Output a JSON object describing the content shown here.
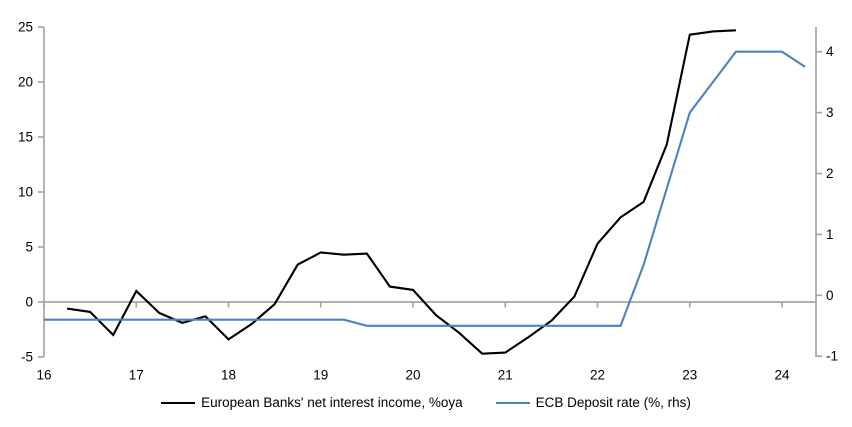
{
  "chart_data": {
    "type": "line",
    "title": "",
    "grid": "zero-baseline-only",
    "legend_position": "bottom-center",
    "x_axis": {
      "tick_labels": [
        "16",
        "17",
        "18",
        "19",
        "20",
        "21",
        "22",
        "23",
        "24"
      ],
      "tick_values": [
        16,
        17,
        18,
        19,
        20,
        21,
        22,
        23,
        24
      ],
      "min": 16,
      "max": 24.37
    },
    "left_axis": {
      "tick_values": [
        25,
        20,
        15,
        10,
        5,
        0,
        -5
      ],
      "min": -5,
      "max": 25
    },
    "right_axis": {
      "tick_values": [
        4,
        3,
        2,
        1,
        0,
        -1
      ],
      "min": -1,
      "max": 4.4
    },
    "series": [
      {
        "name": "European Banks' net interest income, %oya",
        "axis": "left",
        "color": "#000000",
        "x": [
          16.25,
          16.5,
          16.75,
          17.0,
          17.25,
          17.5,
          17.75,
          18.0,
          18.25,
          18.5,
          18.75,
          19.0,
          19.25,
          19.5,
          19.75,
          20.0,
          20.25,
          20.5,
          20.75,
          21.0,
          21.25,
          21.5,
          21.75,
          22.0,
          22.25,
          22.5,
          22.75,
          23.0,
          23.25,
          23.5
        ],
        "values": [
          -0.6,
          -0.9,
          -3.0,
          1.0,
          -1.0,
          -1.9,
          -1.3,
          -3.4,
          -2.0,
          -0.2,
          3.4,
          4.5,
          4.3,
          4.4,
          1.4,
          1.1,
          -1.2,
          -2.8,
          -4.7,
          -4.6,
          -3.2,
          -1.7,
          0.5,
          5.3,
          7.7,
          9.1,
          14.3,
          24.3,
          24.6,
          24.7
        ]
      },
      {
        "name": "ECB Deposit rate (%, rhs)",
        "axis": "right",
        "color": "#4F81BD",
        "x": [
          16.0,
          16.25,
          16.5,
          16.75,
          17.0,
          17.25,
          17.5,
          17.75,
          18.0,
          18.25,
          18.5,
          18.75,
          19.0,
          19.25,
          19.5,
          19.75,
          20.0,
          20.25,
          20.5,
          20.75,
          21.0,
          21.25,
          21.5,
          21.75,
          22.0,
          22.25,
          22.5,
          22.75,
          23.0,
          23.25,
          23.5,
          23.75,
          24.0,
          24.25
        ],
        "values": [
          -0.4,
          -0.4,
          -0.4,
          -0.4,
          -0.4,
          -0.4,
          -0.4,
          -0.4,
          -0.4,
          -0.4,
          -0.4,
          -0.4,
          -0.4,
          -0.4,
          -0.5,
          -0.5,
          -0.5,
          -0.5,
          -0.5,
          -0.5,
          -0.5,
          -0.5,
          -0.5,
          -0.5,
          -0.5,
          -0.5,
          0.5,
          1.75,
          3.0,
          3.5,
          4.0,
          4.0,
          4.0,
          3.75
        ]
      }
    ]
  },
  "colors": {
    "axis": "#a6a6a6",
    "label_text": "#000000",
    "background": "#ffffff"
  }
}
